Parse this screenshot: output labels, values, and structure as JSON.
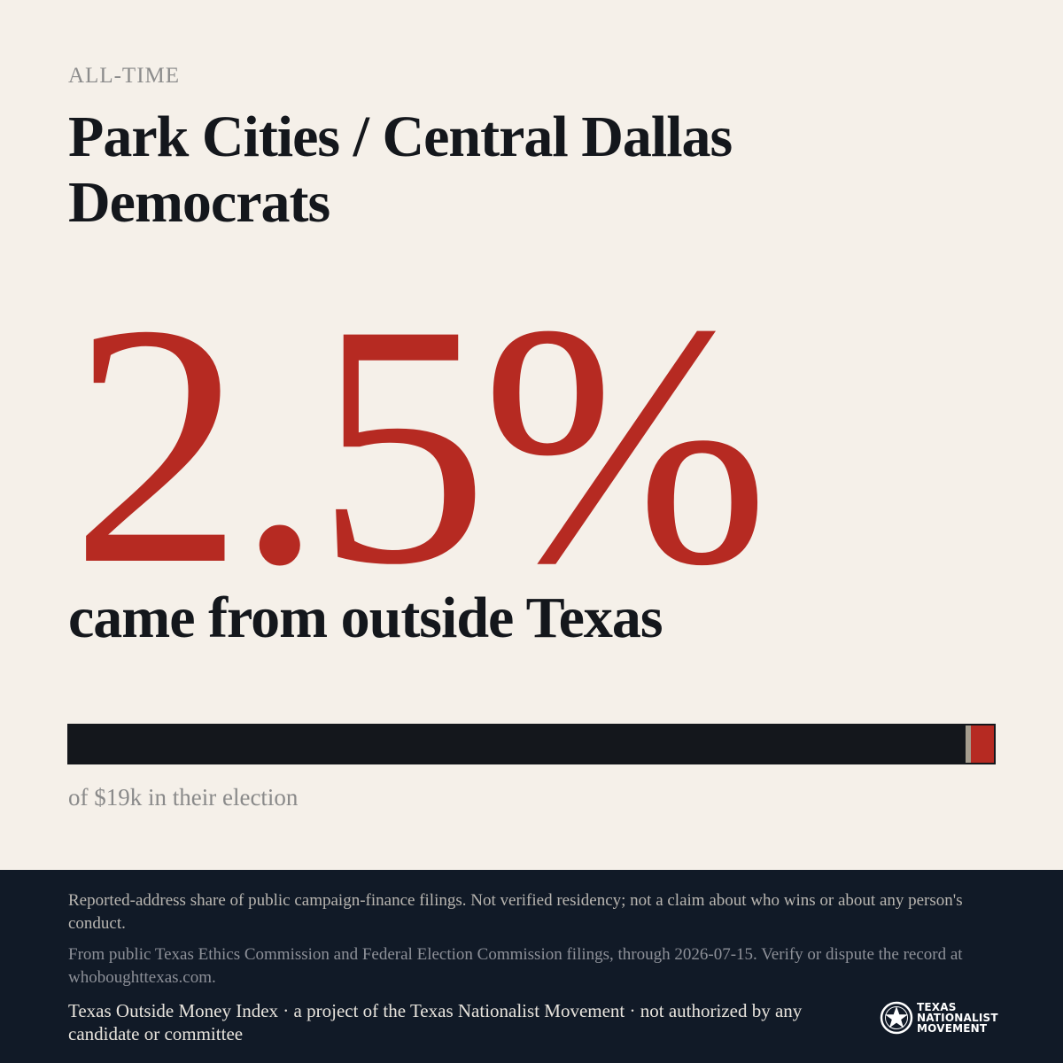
{
  "header": {
    "eyebrow": "ALL-TIME",
    "title": "Park Cities / Central Dallas Democrats"
  },
  "stat": {
    "percent_label": "2.5%",
    "percent_value": 2.5,
    "caption": "came from outside Texas"
  },
  "bar": {
    "caption": "of $19k in their election",
    "fill_color": "#b62a22",
    "track_color": "#14171c"
  },
  "footer": {
    "disclaimer": "Reported-address share of public campaign-finance filings. Not verified residency; not a claim about who wins or about any person's conduct.",
    "source": "From public Texas Ethics Commission and Federal Election Commission filings, through 2026-07-15. Verify or dispute the record at whoboughttexas.com.",
    "credit": "Texas Outside Money Index · a project of the Texas Nationalist Movement · not authorized by any candidate or committee"
  },
  "logo": {
    "line1": "TEXAS",
    "line2": "NATIONALIST",
    "line3": "MOVEMENT",
    "icon": "star-seal-icon"
  },
  "colors": {
    "accent": "#b62a22",
    "background": "#f5f0e9",
    "footer_background": "#111a27"
  }
}
